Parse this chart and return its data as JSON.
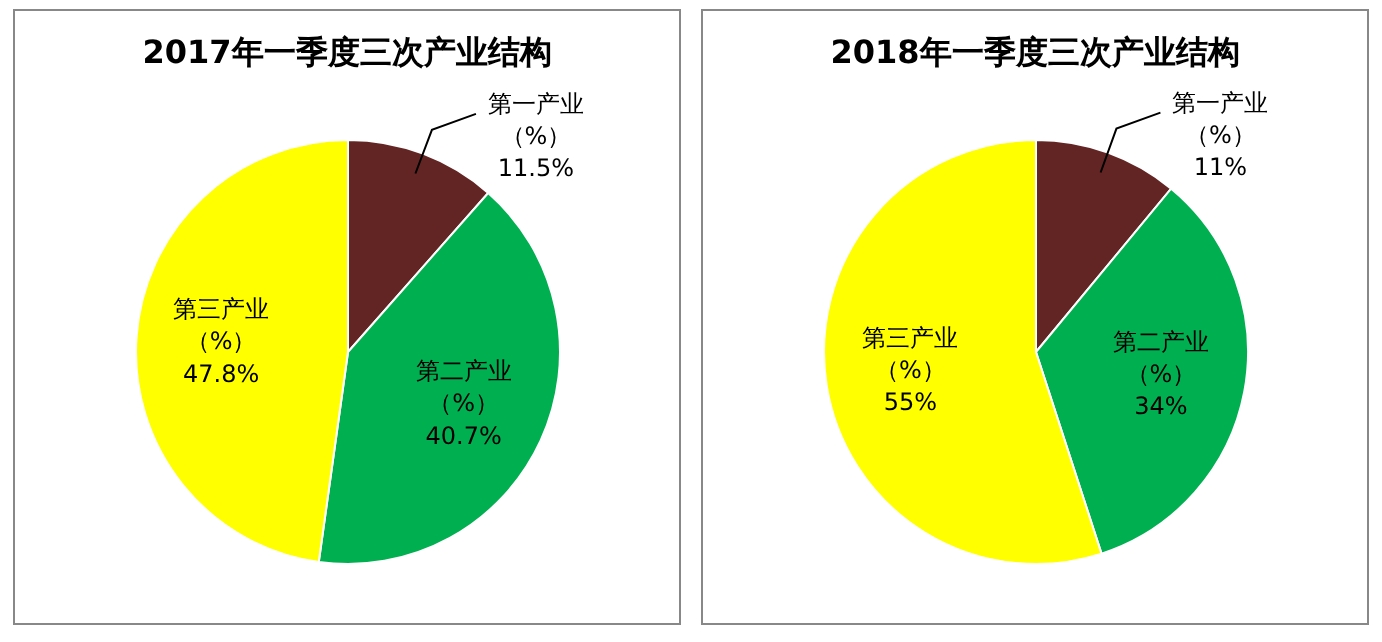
{
  "chart_data": [
    {
      "type": "pie",
      "title": "2017年一季度三次产业结构",
      "categories": [
        "第一产业（%）",
        "第二产业（%）",
        "第三产业（%）"
      ],
      "values": [
        11.5,
        40.7,
        47.8
      ],
      "value_labels": [
        "11.5%",
        "40.7%",
        "47.8%"
      ],
      "colors": [
        "#632523",
        "#00b050",
        "#ffff00"
      ]
    },
    {
      "type": "pie",
      "title": "2018年一季度三次产业结构",
      "categories": [
        "第一产业（%）",
        "第二产业（%）",
        "第三产业（%）"
      ],
      "values": [
        11,
        34,
        55
      ],
      "value_labels": [
        "11%",
        "34%",
        "55%"
      ],
      "colors": [
        "#632523",
        "#00b050",
        "#ffff00"
      ]
    }
  ]
}
